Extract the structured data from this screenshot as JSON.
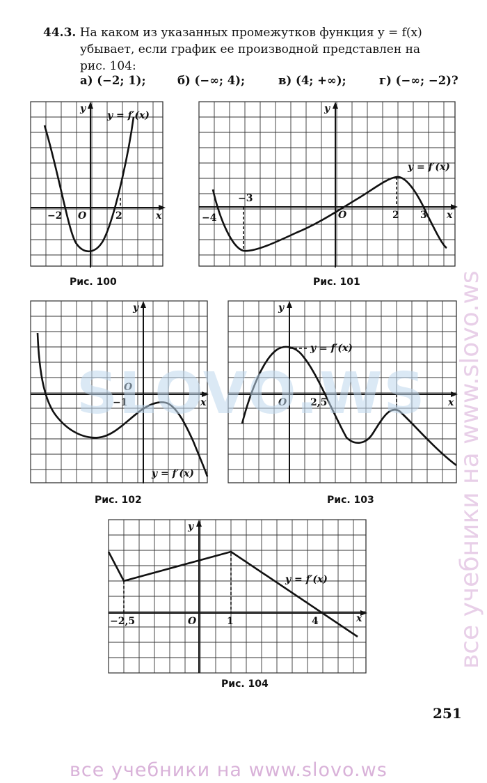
{
  "problem": {
    "number": "44.3.",
    "line1": "На каком из указанных промежутков функция y = f(x)",
    "line2": "убывает, если график ее производной представлен на",
    "line3": "рис. 104:",
    "options": [
      "а) (−2; 1);",
      "б) (−∞; 4);",
      "в) (4; +∞);",
      "г) (−∞; −2)?"
    ]
  },
  "figures": [
    {
      "caption": "Рис. 100",
      "labels": {
        "y": "y",
        "x": "x",
        "origin": "O",
        "func": "y = f′(x)",
        "ticks": [
          "−2",
          "2"
        ]
      }
    },
    {
      "caption": "Рис. 101",
      "labels": {
        "y": "y",
        "x": "x",
        "origin": "O",
        "func": "y = f′(x)",
        "ticks": [
          "−4",
          "−3",
          "2",
          "3"
        ]
      }
    },
    {
      "caption": "Рис. 102",
      "labels": {
        "y": "y",
        "x": "x",
        "origin": "O",
        "func": "y = f′(x)",
        "ticks": [
          "−1"
        ]
      }
    },
    {
      "caption": "Рис. 103",
      "labels": {
        "y": "y",
        "x": "x",
        "origin": "O",
        "func": "y = f′(x)",
        "ticks": [
          "2,5"
        ]
      }
    },
    {
      "caption": "Рис. 104",
      "labels": {
        "y": "y",
        "x": "x",
        "origin": "O",
        "func": "y = f′(x)",
        "ticks": [
          "−2,5",
          "1",
          "4"
        ]
      }
    }
  ],
  "page_number": "251",
  "watermarks": {
    "center": "SLOVO.WS",
    "bottom": "все учебники на www.slovo.ws",
    "side": "все учебники на www.slovo.ws"
  }
}
